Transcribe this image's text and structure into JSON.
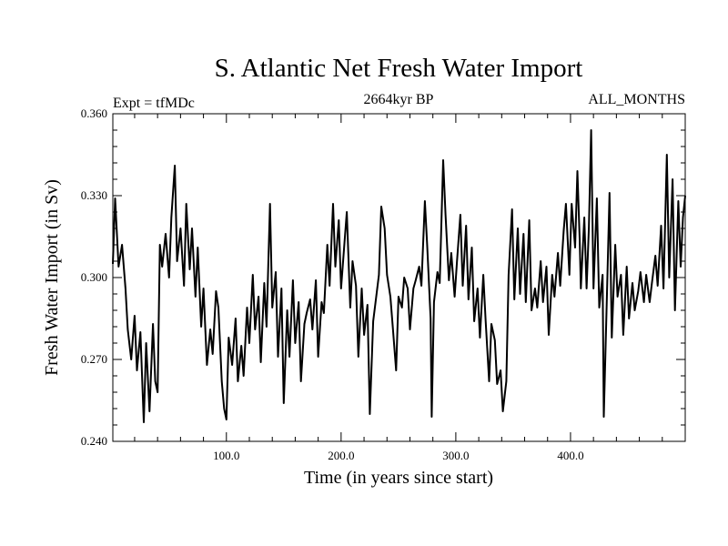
{
  "chart_data": {
    "type": "line",
    "title": "S. Atlantic Net Fresh Water Import",
    "subtitle_left": "Expt = tfMDc",
    "subtitle_center": "2664kyr BP",
    "subtitle_right": "ALL_MONTHS",
    "xlabel": "Time (in years since start)",
    "ylabel": "Fresh Water Import (in Sv)",
    "xlim": [
      1,
      500
    ],
    "ylim": [
      0.24,
      0.36
    ],
    "xticks": [
      100,
      200,
      300,
      400
    ],
    "xtick_labels": [
      "100.0",
      "200.0",
      "300.0",
      "400.0"
    ],
    "yticks": [
      0.24,
      0.27,
      0.3,
      0.33,
      0.36
    ],
    "ytick_labels": [
      "0.240",
      "0.270",
      "0.300",
      "0.330",
      "0.360"
    ],
    "series": [
      {
        "name": "Net Fresh Water Import",
        "color": "#000000",
        "points": [
          [
            1,
            0.305
          ],
          [
            3,
            0.329
          ],
          [
            6,
            0.304
          ],
          [
            9,
            0.312
          ],
          [
            12,
            0.296
          ],
          [
            14,
            0.281
          ],
          [
            17,
            0.27
          ],
          [
            20,
            0.286
          ],
          [
            22,
            0.266
          ],
          [
            25,
            0.28
          ],
          [
            28,
            0.247
          ],
          [
            30,
            0.276
          ],
          [
            33,
            0.251
          ],
          [
            36,
            0.283
          ],
          [
            38,
            0.262
          ],
          [
            40,
            0.258
          ],
          [
            42,
            0.312
          ],
          [
            44,
            0.304
          ],
          [
            47,
            0.316
          ],
          [
            50,
            0.3
          ],
          [
            52,
            0.322
          ],
          [
            55,
            0.341
          ],
          [
            57,
            0.306
          ],
          [
            60,
            0.318
          ],
          [
            63,
            0.297
          ],
          [
            65,
            0.327
          ],
          [
            68,
            0.303
          ],
          [
            70,
            0.318
          ],
          [
            73,
            0.293
          ],
          [
            75,
            0.311
          ],
          [
            78,
            0.282
          ],
          [
            80,
            0.296
          ],
          [
            83,
            0.268
          ],
          [
            86,
            0.281
          ],
          [
            88,
            0.272
          ],
          [
            91,
            0.295
          ],
          [
            93,
            0.289
          ],
          [
            96,
            0.262
          ],
          [
            98,
            0.252
          ],
          [
            100,
            0.248
          ],
          [
            102,
            0.278
          ],
          [
            105,
            0.268
          ],
          [
            108,
            0.285
          ],
          [
            110,
            0.262
          ],
          [
            113,
            0.275
          ],
          [
            115,
            0.264
          ],
          [
            118,
            0.289
          ],
          [
            120,
            0.276
          ],
          [
            123,
            0.301
          ],
          [
            125,
            0.281
          ],
          [
            128,
            0.293
          ],
          [
            130,
            0.269
          ],
          [
            133,
            0.298
          ],
          [
            135,
            0.282
          ],
          [
            138,
            0.327
          ],
          [
            140,
            0.289
          ],
          [
            143,
            0.302
          ],
          [
            145,
            0.271
          ],
          [
            148,
            0.296
          ],
          [
            150,
            0.254
          ],
          [
            153,
            0.288
          ],
          [
            155,
            0.271
          ],
          [
            158,
            0.299
          ],
          [
            160,
            0.276
          ],
          [
            163,
            0.291
          ],
          [
            165,
            0.262
          ],
          [
            168,
            0.283
          ],
          [
            170,
            0.287
          ],
          [
            173,
            0.292
          ],
          [
            175,
            0.281
          ],
          [
            178,
            0.299
          ],
          [
            180,
            0.271
          ],
          [
            183,
            0.291
          ],
          [
            185,
            0.287
          ],
          [
            188,
            0.312
          ],
          [
            190,
            0.297
          ],
          [
            193,
            0.327
          ],
          [
            195,
            0.304
          ],
          [
            198,
            0.321
          ],
          [
            200,
            0.296
          ],
          [
            203,
            0.313
          ],
          [
            205,
            0.324
          ],
          [
            208,
            0.289
          ],
          [
            210,
            0.306
          ],
          [
            213,
            0.297
          ],
          [
            215,
            0.271
          ],
          [
            218,
            0.296
          ],
          [
            220,
            0.279
          ],
          [
            223,
            0.29
          ],
          [
            225,
            0.25
          ],
          [
            228,
            0.284
          ],
          [
            230,
            0.291
          ],
          [
            233,
            0.301
          ],
          [
            235,
            0.326
          ],
          [
            238,
            0.318
          ],
          [
            240,
            0.301
          ],
          [
            243,
            0.293
          ],
          [
            245,
            0.282
          ],
          [
            248,
            0.266
          ],
          [
            250,
            0.293
          ],
          [
            253,
            0.289
          ],
          [
            255,
            0.3
          ],
          [
            258,
            0.296
          ],
          [
            260,
            0.281
          ],
          [
            263,
            0.296
          ],
          [
            265,
            0.299
          ],
          [
            268,
            0.304
          ],
          [
            270,
            0.297
          ],
          [
            273,
            0.328
          ],
          [
            275,
            0.312
          ],
          [
            278,
            0.285
          ],
          [
            279,
            0.249
          ],
          [
            281,
            0.291
          ],
          [
            284,
            0.302
          ],
          [
            286,
            0.298
          ],
          [
            289,
            0.343
          ],
          [
            291,
            0.323
          ],
          [
            294,
            0.299
          ],
          [
            296,
            0.309
          ],
          [
            299,
            0.293
          ],
          [
            301,
            0.306
          ],
          [
            304,
            0.323
          ],
          [
            306,
            0.297
          ],
          [
            309,
            0.319
          ],
          [
            311,
            0.292
          ],
          [
            314,
            0.311
          ],
          [
            316,
            0.284
          ],
          [
            319,
            0.296
          ],
          [
            321,
            0.278
          ],
          [
            324,
            0.301
          ],
          [
            326,
            0.284
          ],
          [
            329,
            0.262
          ],
          [
            331,
            0.283
          ],
          [
            334,
            0.277
          ],
          [
            336,
            0.261
          ],
          [
            339,
            0.266
          ],
          [
            341,
            0.251
          ],
          [
            344,
            0.262
          ],
          [
            346,
            0.301
          ],
          [
            349,
            0.325
          ],
          [
            351,
            0.292
          ],
          [
            354,
            0.318
          ],
          [
            356,
            0.294
          ],
          [
            359,
            0.316
          ],
          [
            361,
            0.291
          ],
          [
            364,
            0.321
          ],
          [
            366,
            0.288
          ],
          [
            369,
            0.296
          ],
          [
            371,
            0.289
          ],
          [
            374,
            0.306
          ],
          [
            376,
            0.291
          ],
          [
            379,
            0.304
          ],
          [
            381,
            0.279
          ],
          [
            384,
            0.301
          ],
          [
            386,
            0.293
          ],
          [
            389,
            0.309
          ],
          [
            391,
            0.297
          ],
          [
            394,
            0.317
          ],
          [
            396,
            0.327
          ],
          [
            399,
            0.301
          ],
          [
            401,
            0.327
          ],
          [
            404,
            0.311
          ],
          [
            406,
            0.339
          ],
          [
            408,
            0.314
          ],
          [
            409,
            0.296
          ],
          [
            412,
            0.322
          ],
          [
            414,
            0.296
          ],
          [
            416,
            0.318
          ],
          [
            418,
            0.354
          ],
          [
            420,
            0.296
          ],
          [
            423,
            0.329
          ],
          [
            425,
            0.289
          ],
          [
            428,
            0.301
          ],
          [
            429,
            0.249
          ],
          [
            432,
            0.298
          ],
          [
            434,
            0.331
          ],
          [
            436,
            0.278
          ],
          [
            439,
            0.312
          ],
          [
            441,
            0.293
          ],
          [
            444,
            0.301
          ],
          [
            446,
            0.279
          ],
          [
            449,
            0.304
          ],
          [
            451,
            0.285
          ],
          [
            454,
            0.298
          ],
          [
            456,
            0.288
          ],
          [
            459,
            0.295
          ],
          [
            461,
            0.302
          ],
          [
            464,
            0.291
          ],
          [
            466,
            0.301
          ],
          [
            469,
            0.291
          ],
          [
            471,
            0.298
          ],
          [
            474,
            0.308
          ],
          [
            476,
            0.297
          ],
          [
            479,
            0.319
          ],
          [
            481,
            0.296
          ],
          [
            484,
            0.345
          ],
          [
            486,
            0.3
          ],
          [
            489,
            0.336
          ],
          [
            491,
            0.288
          ],
          [
            494,
            0.328
          ],
          [
            496,
            0.304
          ],
          [
            498,
            0.322
          ],
          [
            500,
            0.33
          ]
        ]
      }
    ]
  }
}
